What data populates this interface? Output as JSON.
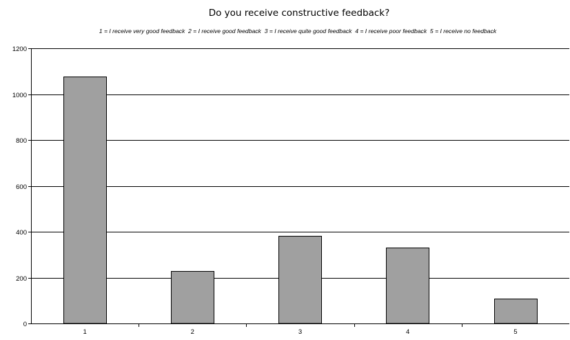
{
  "chart_data": {
    "type": "bar",
    "title": "Do you receive constructive feedback?",
    "subtitle": "1 = I receive very good feedback  2 = I receive good feedback  3 = I receive quite good feedback  4 = I receive poor feedback  5 = I receive no feedback",
    "xlabel": "",
    "ylabel": "",
    "categories": [
      "1",
      "2",
      "3",
      "4",
      "5"
    ],
    "values": [
      1078,
      228,
      382,
      332,
      108
    ],
    "ylim": [
      0,
      1200
    ],
    "yticks": [
      "0",
      "200",
      "400",
      "600",
      "800",
      "1000",
      "1200"
    ],
    "grid": true,
    "legend": "none",
    "colors": {
      "bar_fill": "#a0a0a0",
      "bar_stroke": "#000000",
      "grid": "#000000",
      "axis": "#000000",
      "background": "#ffffff"
    }
  }
}
